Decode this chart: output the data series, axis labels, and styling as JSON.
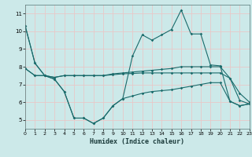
{
  "xlabel": "Humidex (Indice chaleur)",
  "bg_color": "#cce9e9",
  "grid_color": "#e8c8c8",
  "line_color": "#1a6b6b",
  "xlim": [
    0,
    23
  ],
  "ylim": [
    4.5,
    11.5
  ],
  "yticks": [
    5,
    6,
    7,
    8,
    9,
    10,
    11
  ],
  "xticks": [
    0,
    1,
    2,
    3,
    4,
    5,
    6,
    7,
    8,
    9,
    10,
    11,
    12,
    13,
    14,
    15,
    16,
    17,
    18,
    19,
    20,
    21,
    22,
    23
  ],
  "line1_x": [
    0,
    1,
    2,
    3,
    4,
    5,
    6,
    7,
    8,
    9,
    10,
    11,
    12,
    13,
    14,
    15,
    16,
    17,
    18,
    19,
    20,
    21,
    22,
    23
  ],
  "line1_y": [
    10.3,
    8.2,
    7.5,
    7.3,
    6.6,
    5.1,
    5.1,
    4.8,
    5.1,
    5.8,
    6.2,
    8.6,
    9.8,
    9.5,
    9.8,
    10.1,
    11.2,
    9.85,
    9.85,
    8.1,
    8.05,
    6.05,
    5.8,
    5.9
  ],
  "line2_x": [
    0,
    1,
    2,
    3,
    4,
    5,
    6,
    7,
    8,
    9,
    10,
    11,
    12,
    13,
    14,
    15,
    16,
    17,
    18,
    19,
    20,
    21,
    22,
    23
  ],
  "line2_y": [
    10.3,
    8.2,
    7.5,
    7.3,
    6.6,
    5.1,
    5.1,
    4.8,
    5.1,
    5.8,
    6.2,
    6.35,
    6.5,
    6.6,
    6.65,
    6.7,
    6.8,
    6.9,
    7.0,
    7.1,
    7.1,
    6.05,
    5.8,
    5.9
  ],
  "line3_x": [
    0,
    1,
    2,
    3,
    4,
    5,
    6,
    7,
    8,
    9,
    10,
    11,
    12,
    13,
    14,
    15,
    16,
    17,
    18,
    19,
    20,
    21,
    22,
    23
  ],
  "line3_y": [
    7.9,
    7.5,
    7.5,
    7.4,
    7.5,
    7.5,
    7.5,
    7.5,
    7.5,
    7.6,
    7.65,
    7.7,
    7.75,
    7.8,
    7.85,
    7.9,
    8.0,
    8.0,
    8.0,
    8.0,
    8.0,
    7.35,
    6.5,
    6.0
  ],
  "line4_x": [
    0,
    1,
    2,
    3,
    4,
    5,
    6,
    7,
    8,
    9,
    10,
    11,
    12,
    13,
    14,
    15,
    16,
    17,
    18,
    19,
    20,
    21,
    22,
    23
  ],
  "line4_y": [
    7.9,
    7.5,
    7.5,
    7.4,
    7.5,
    7.5,
    7.5,
    7.5,
    7.5,
    7.55,
    7.6,
    7.62,
    7.65,
    7.65,
    7.65,
    7.65,
    7.65,
    7.65,
    7.65,
    7.65,
    7.65,
    7.35,
    6.1,
    5.9
  ]
}
